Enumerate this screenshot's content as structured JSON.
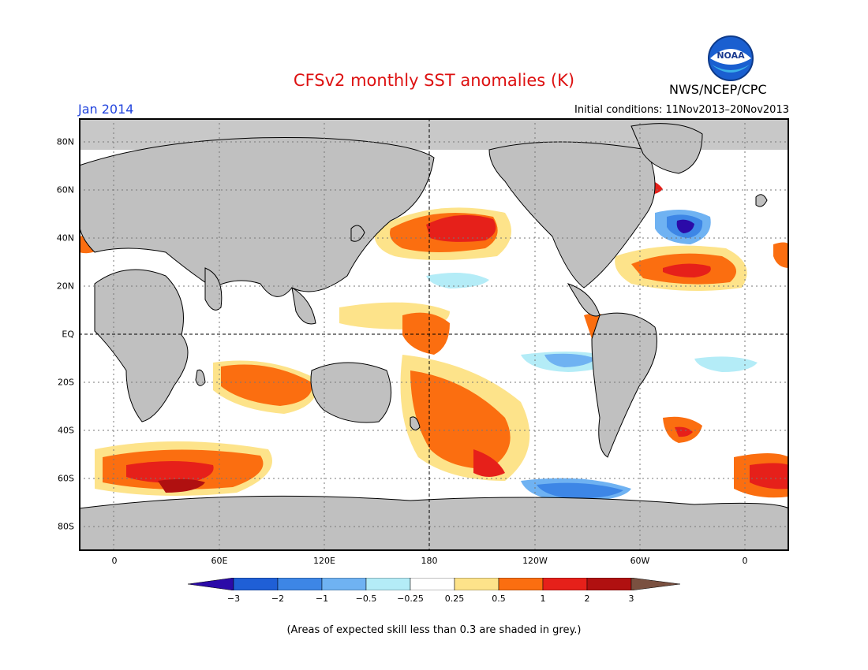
{
  "header": {
    "title": "CFSv2 monthly SST anomalies (K)",
    "month": "Jan 2014",
    "initial_conditions": "Initial conditions: 11Nov2013–20Nov2013",
    "agency": "NWS/NCEP/CPC",
    "logo_text": "NOAA"
  },
  "map": {
    "lon_labels": [
      "0",
      "60E",
      "120E",
      "180",
      "120W",
      "60W",
      "0"
    ],
    "lat_labels": [
      "80N",
      "60N",
      "40N",
      "20N",
      "EQ",
      "20S",
      "40S",
      "60S",
      "80S"
    ],
    "land_color": "#c0c0c0",
    "skill_grey_color": "#c8c8c8"
  },
  "colorbar": {
    "labels": [
      "−3",
      "−2",
      "−1",
      "−0.5",
      "−0.25",
      "0.25",
      "0.5",
      "1",
      "2",
      "3"
    ],
    "colors": [
      "#2b0aa8",
      "#1f5fd6",
      "#3d86e6",
      "#6fb2f2",
      "#b4ecf7",
      "#ffffff",
      "#fde38a",
      "#fb6e10",
      "#e6201a",
      "#b01010",
      "#7a5040"
    ]
  },
  "footnote": "(Areas of expected skill less than 0.3 are shaded in grey.)"
}
